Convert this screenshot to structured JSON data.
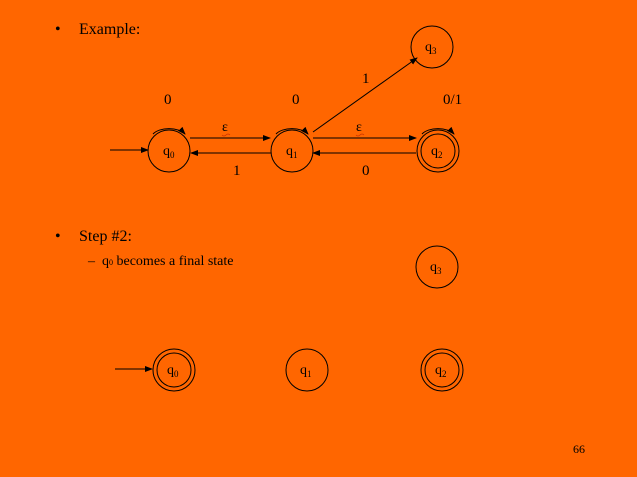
{
  "bullets": {
    "example": "Example:",
    "step": "Step #2:",
    "marker": "•"
  },
  "step_detail": {
    "dash": "–",
    "state": "q",
    "state_sub": "0",
    "text": " becomes a final state"
  },
  "top_diagram": {
    "states": [
      {
        "id": "q0",
        "base": "q",
        "sub": "0",
        "initial": true,
        "final": false
      },
      {
        "id": "q1",
        "base": "q",
        "sub": "1",
        "initial": false,
        "final": false
      },
      {
        "id": "q2",
        "base": "q",
        "sub": "2",
        "initial": false,
        "final": true
      },
      {
        "id": "q3",
        "base": "q",
        "sub": "3",
        "initial": false,
        "final": false
      }
    ],
    "self_loop_labels": {
      "q0": "0",
      "q1": "0",
      "q2": "0/1"
    },
    "transitions": [
      {
        "from": "q0",
        "to": "q1",
        "label": "ε"
      },
      {
        "from": "q1",
        "to": "q0",
        "label": "1"
      },
      {
        "from": "q1",
        "to": "q2",
        "label": "ε"
      },
      {
        "from": "q2",
        "to": "q1",
        "label": "0"
      },
      {
        "from": "q1",
        "to": "q3",
        "label": "1"
      }
    ]
  },
  "bottom_diagram": {
    "states": [
      {
        "id": "q0",
        "base": "q",
        "sub": "0",
        "initial": true,
        "final": true
      },
      {
        "id": "q1",
        "base": "q",
        "sub": "1",
        "initial": false,
        "final": false
      },
      {
        "id": "q2",
        "base": "q",
        "sub": "2",
        "initial": false,
        "final": true
      },
      {
        "id": "q3",
        "base": "q",
        "sub": "3",
        "initial": false,
        "final": false
      }
    ]
  },
  "page_number": "66",
  "colors": {
    "background": "#FF6600",
    "ink": "#000000"
  }
}
